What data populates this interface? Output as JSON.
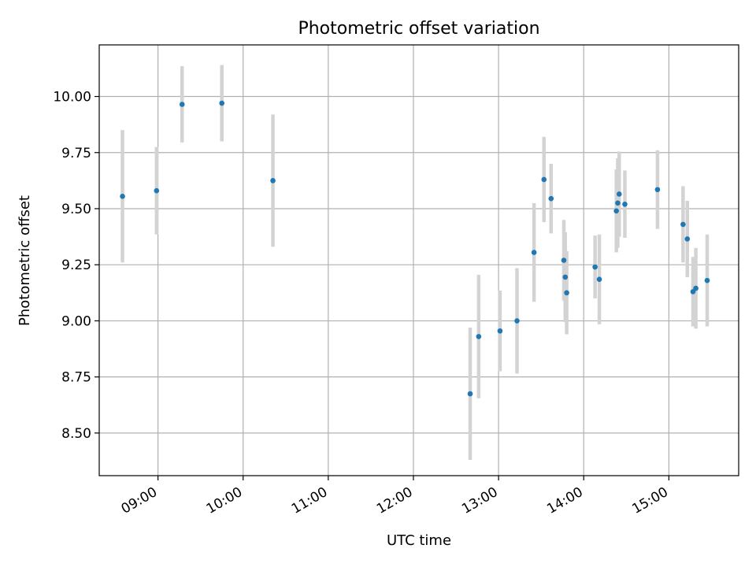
{
  "chart_data": {
    "type": "scatter",
    "title": "Photometric offset variation",
    "xlabel": "UTC time",
    "ylabel": "Photometric offset",
    "x_tick_labels": [
      "09:00",
      "10:00",
      "11:00",
      "12:00",
      "13:00",
      "14:00",
      "15:00"
    ],
    "y_tick_labels": [
      "8.50",
      "8.75",
      "9.00",
      "9.25",
      "9.50",
      "9.75",
      "10.00"
    ],
    "x_ticks_hours": [
      9,
      10,
      11,
      12,
      13,
      14,
      15
    ],
    "y_ticks": [
      8.5,
      8.75,
      9.0,
      9.25,
      9.5,
      9.75,
      10.0
    ],
    "xlim_hours": [
      8.31,
      15.82
    ],
    "ylim": [
      8.31,
      10.23
    ],
    "grid": true,
    "colors": {
      "point": "#1f77b4",
      "errorbar": "#d3d3d3",
      "grid": "#b0b0b0"
    },
    "series": [
      {
        "points": [
          {
            "t": "08:35",
            "y": 9.555,
            "err": 0.295
          },
          {
            "t": "08:59",
            "y": 9.58,
            "err": 0.195
          },
          {
            "t": "09:17",
            "y": 9.965,
            "err": 0.17
          },
          {
            "t": "09:45",
            "y": 9.97,
            "err": 0.17
          },
          {
            "t": "10:21",
            "y": 9.625,
            "err": 0.295
          },
          {
            "t": "12:40",
            "y": 8.675,
            "err": 0.295
          },
          {
            "t": "12:46",
            "y": 8.93,
            "err": 0.275
          },
          {
            "t": "13:01",
            "y": 8.955,
            "err": 0.18
          },
          {
            "t": "13:13",
            "y": 9.0,
            "err": 0.235
          },
          {
            "t": "13:25",
            "y": 9.305,
            "err": 0.22
          },
          {
            "t": "13:32",
            "y": 9.63,
            "err": 0.19
          },
          {
            "t": "13:37",
            "y": 9.545,
            "err": 0.155
          },
          {
            "t": "13:46",
            "y": 9.27,
            "err": 0.18
          },
          {
            "t": "13:47",
            "y": 9.195,
            "err": 0.2
          },
          {
            "t": "13:48",
            "y": 9.125,
            "err": 0.185
          },
          {
            "t": "14:08",
            "y": 9.24,
            "err": 0.14
          },
          {
            "t": "14:11",
            "y": 9.185,
            "err": 0.2
          },
          {
            "t": "14:23",
            "y": 9.49,
            "err": 0.185
          },
          {
            "t": "14:24",
            "y": 9.525,
            "err": 0.2
          },
          {
            "t": "14:25",
            "y": 9.565,
            "err": 0.19
          },
          {
            "t": "14:29",
            "y": 9.52,
            "err": 0.15
          },
          {
            "t": "14:52",
            "y": 9.585,
            "err": 0.175
          },
          {
            "t": "15:10",
            "y": 9.43,
            "err": 0.17
          },
          {
            "t": "15:13",
            "y": 9.365,
            "err": 0.17
          },
          {
            "t": "15:17",
            "y": 9.13,
            "err": 0.155
          },
          {
            "t": "15:19",
            "y": 9.145,
            "err": 0.18
          },
          {
            "t": "15:27",
            "y": 9.18,
            "err": 0.205
          }
        ]
      }
    ]
  }
}
